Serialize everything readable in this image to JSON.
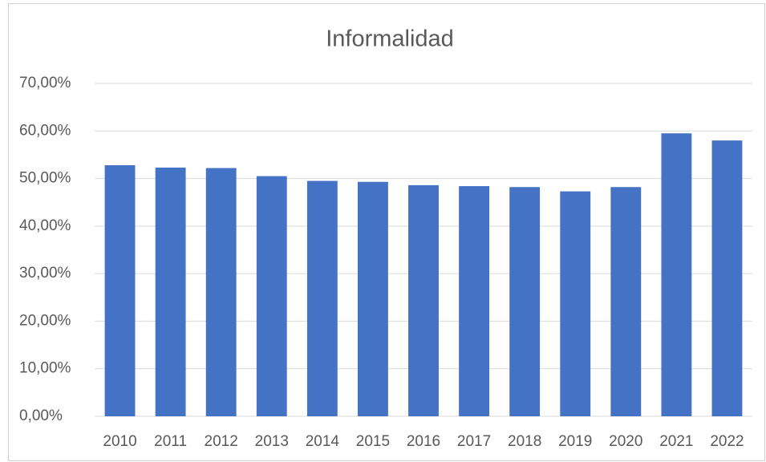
{
  "chart_data": {
    "type": "bar",
    "title": "Informalidad",
    "categories": [
      "2010",
      "2011",
      "2012",
      "2013",
      "2014",
      "2015",
      "2016",
      "2017",
      "2018",
      "2019",
      "2020",
      "2021",
      "2022"
    ],
    "values": [
      52.8,
      52.3,
      52.2,
      50.5,
      49.5,
      49.3,
      48.6,
      48.4,
      48.2,
      47.3,
      48.2,
      59.5,
      58.0
    ],
    "color": "#4472c4",
    "ylim": [
      0,
      70
    ],
    "yticks": [
      {
        "value": 0,
        "label": "0,00%"
      },
      {
        "value": 10,
        "label": "10,00%"
      },
      {
        "value": 20,
        "label": "20,00%"
      },
      {
        "value": 30,
        "label": "30,00%"
      },
      {
        "value": 40,
        "label": "40,00%"
      },
      {
        "value": 50,
        "label": "50,00%"
      },
      {
        "value": 60,
        "label": "60,00%"
      },
      {
        "value": 70,
        "label": "70,00%"
      }
    ],
    "grid": true
  }
}
